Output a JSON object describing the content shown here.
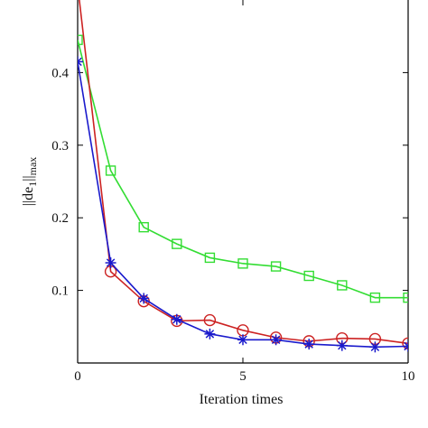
{
  "chart_data": {
    "type": "line",
    "title": "",
    "xlabel": "Iteration times",
    "ylabel": {
      "prefix": "||de",
      "subscript": "1",
      "suffix": "||",
      "subscript2": "max"
    },
    "xlim": [
      0,
      10
    ],
    "ylim": [
      0,
      0.5
    ],
    "xticks": [
      0,
      5,
      10
    ],
    "yticks": [
      0.1,
      0.2,
      0.3,
      0.4
    ],
    "grid": false,
    "legend": "none",
    "x": [
      0,
      1,
      2,
      3,
      4,
      5,
      6,
      7,
      8,
      9,
      10
    ],
    "series": [
      {
        "marker": "square",
        "color": "#33dd33",
        "values": [
          0.445,
          0.265,
          0.187,
          0.164,
          0.145,
          0.137,
          0.133,
          0.12,
          0.107,
          0.09,
          0.09
        ]
      },
      {
        "marker": "circle",
        "color": "#cc2222",
        "values": [
          0.52,
          0.126,
          0.085,
          0.058,
          0.059,
          0.045,
          0.035,
          0.03,
          0.034,
          0.033,
          0.027
        ]
      },
      {
        "marker": "star",
        "color": "#1a1acc",
        "values": [
          0.415,
          0.138,
          0.089,
          0.06,
          0.04,
          0.032,
          0.032,
          0.026,
          0.024,
          0.022,
          0.023
        ]
      }
    ]
  }
}
